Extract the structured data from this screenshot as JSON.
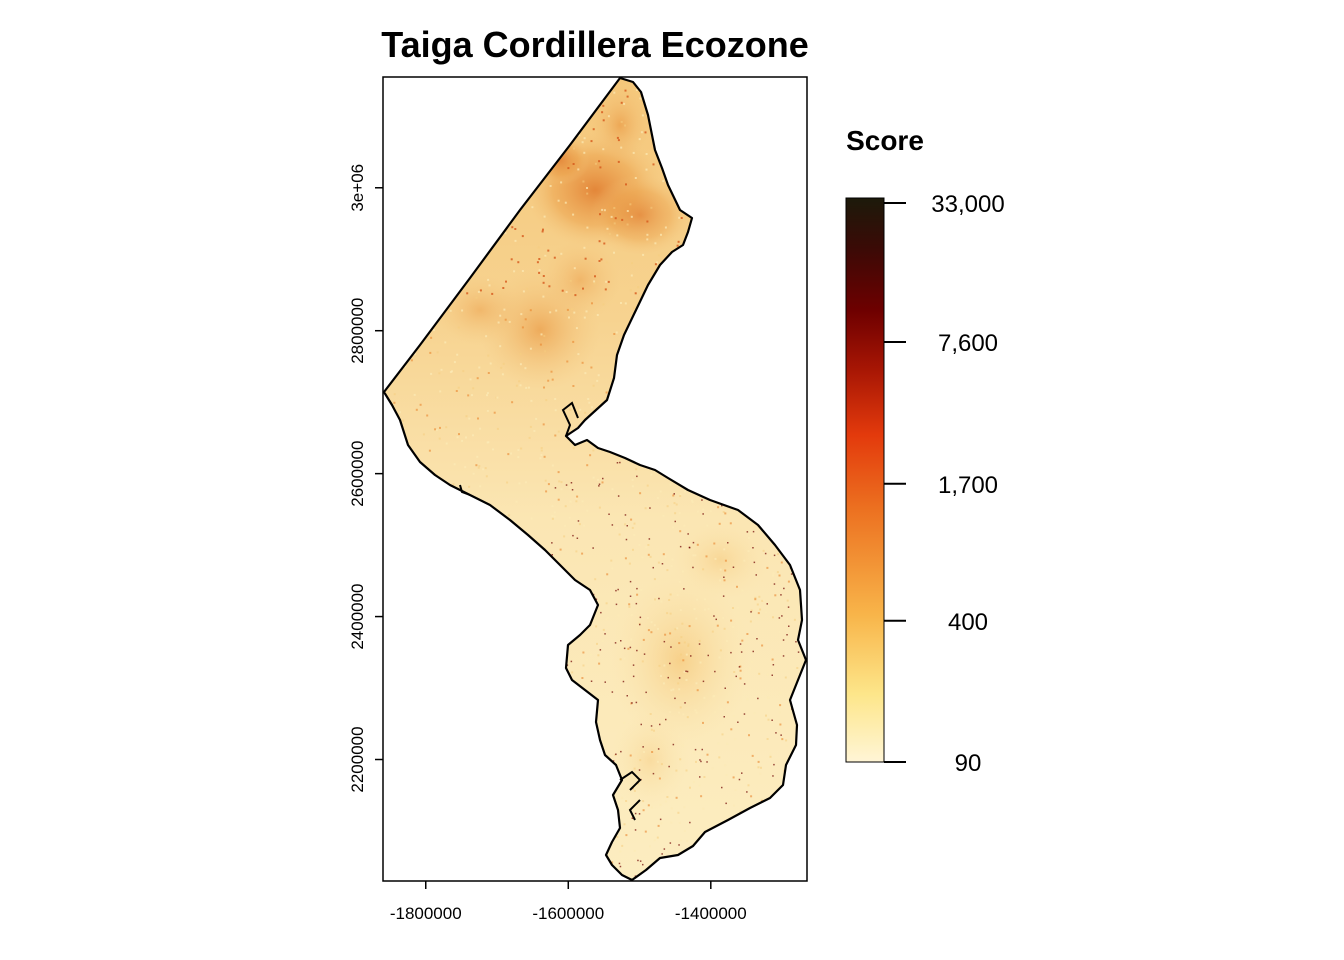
{
  "chart_data": {
    "type": "heatmap",
    "title": "Taiga Cordillera Ecozone",
    "xlabel": "",
    "ylabel": "",
    "x_ticks": [
      -1800000,
      -1600000,
      -1400000
    ],
    "x_tick_labels": [
      "-1800000",
      "-1600000",
      "-1400000"
    ],
    "y_ticks": [
      2200000,
      2400000,
      2600000,
      2800000,
      3000000
    ],
    "y_tick_labels": [
      "2200000",
      "2400000",
      "2600000",
      "2800000",
      "3e+06"
    ],
    "xlim": [
      -1860000,
      -1265000
    ],
    "ylim": [
      2030000,
      3155000
    ],
    "grid": false,
    "legend": {
      "title": "Score",
      "placement": "right",
      "scale": "log",
      "breaks": [
        90,
        400,
        1700,
        7600,
        33000
      ],
      "labels": [
        "90",
        "400",
        "1,700",
        "7,600",
        "33,000"
      ],
      "colors": [
        "#fff5d6",
        "#fde68a",
        "#f8b54a",
        "#ec7020",
        "#e33a0c",
        "#a51504",
        "#6e0000",
        "#3b0a06",
        "#1c1a0a"
      ]
    },
    "map_region": {
      "fill_colors": {
        "low": "#fcebb7",
        "mid": "#f6cd7f",
        "high": "#e9862e",
        "peak": "#d6561a"
      },
      "boundary_color": "#000000"
    }
  }
}
